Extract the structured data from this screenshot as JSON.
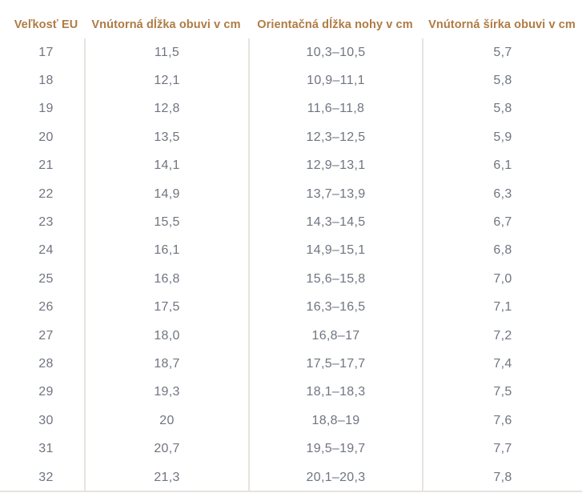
{
  "chart_data": {
    "type": "table",
    "columns": [
      "Veľkosť EU",
      "Vnútorná dĺžka obuvi v cm",
      "Orientačná dĺžka nohy v cm",
      "Vnútorná šírka obuvi v cm"
    ],
    "rows": [
      [
        "17",
        "11,5",
        "10,3–10,5",
        "5,7"
      ],
      [
        "18",
        "12,1",
        "10,9–11,1",
        "5,8"
      ],
      [
        "19",
        "12,8",
        "11,6–11,8",
        "5,8"
      ],
      [
        "20",
        "13,5",
        "12,3–12,5",
        "5,9"
      ],
      [
        "21",
        "14,1",
        "12,9–13,1",
        "6,1"
      ],
      [
        "22",
        "14,9",
        "13,7–13,9",
        "6,3"
      ],
      [
        "23",
        "15,5",
        "14,3–14,5",
        "6,7"
      ],
      [
        "24",
        "16,1",
        "14,9–15,1",
        "6,8"
      ],
      [
        "25",
        "16,8",
        "15,6–15,8",
        "7,0"
      ],
      [
        "26",
        "17,5",
        "16,3–16,5",
        "7,1"
      ],
      [
        "27",
        "18,0",
        "16,8–17",
        "7,2"
      ],
      [
        "28",
        "18,7",
        "17,5–17,7",
        "7,4"
      ],
      [
        "29",
        "19,3",
        "18,1–18,3",
        "7,5"
      ],
      [
        "30",
        "20",
        "18,8–19",
        "7,6"
      ],
      [
        "31",
        "20,7",
        "19,5–19,7",
        "7,7"
      ],
      [
        "32",
        "21,3",
        "20,1–20,3",
        "7,8"
      ]
    ],
    "layout": {
      "grid": "vertical-column-dividers-only",
      "legend": "none"
    }
  },
  "colors": {
    "header_text": "#af7b44",
    "body_text": "#6f7580",
    "divider": "#e7e3df",
    "background": "#ffffff"
  }
}
